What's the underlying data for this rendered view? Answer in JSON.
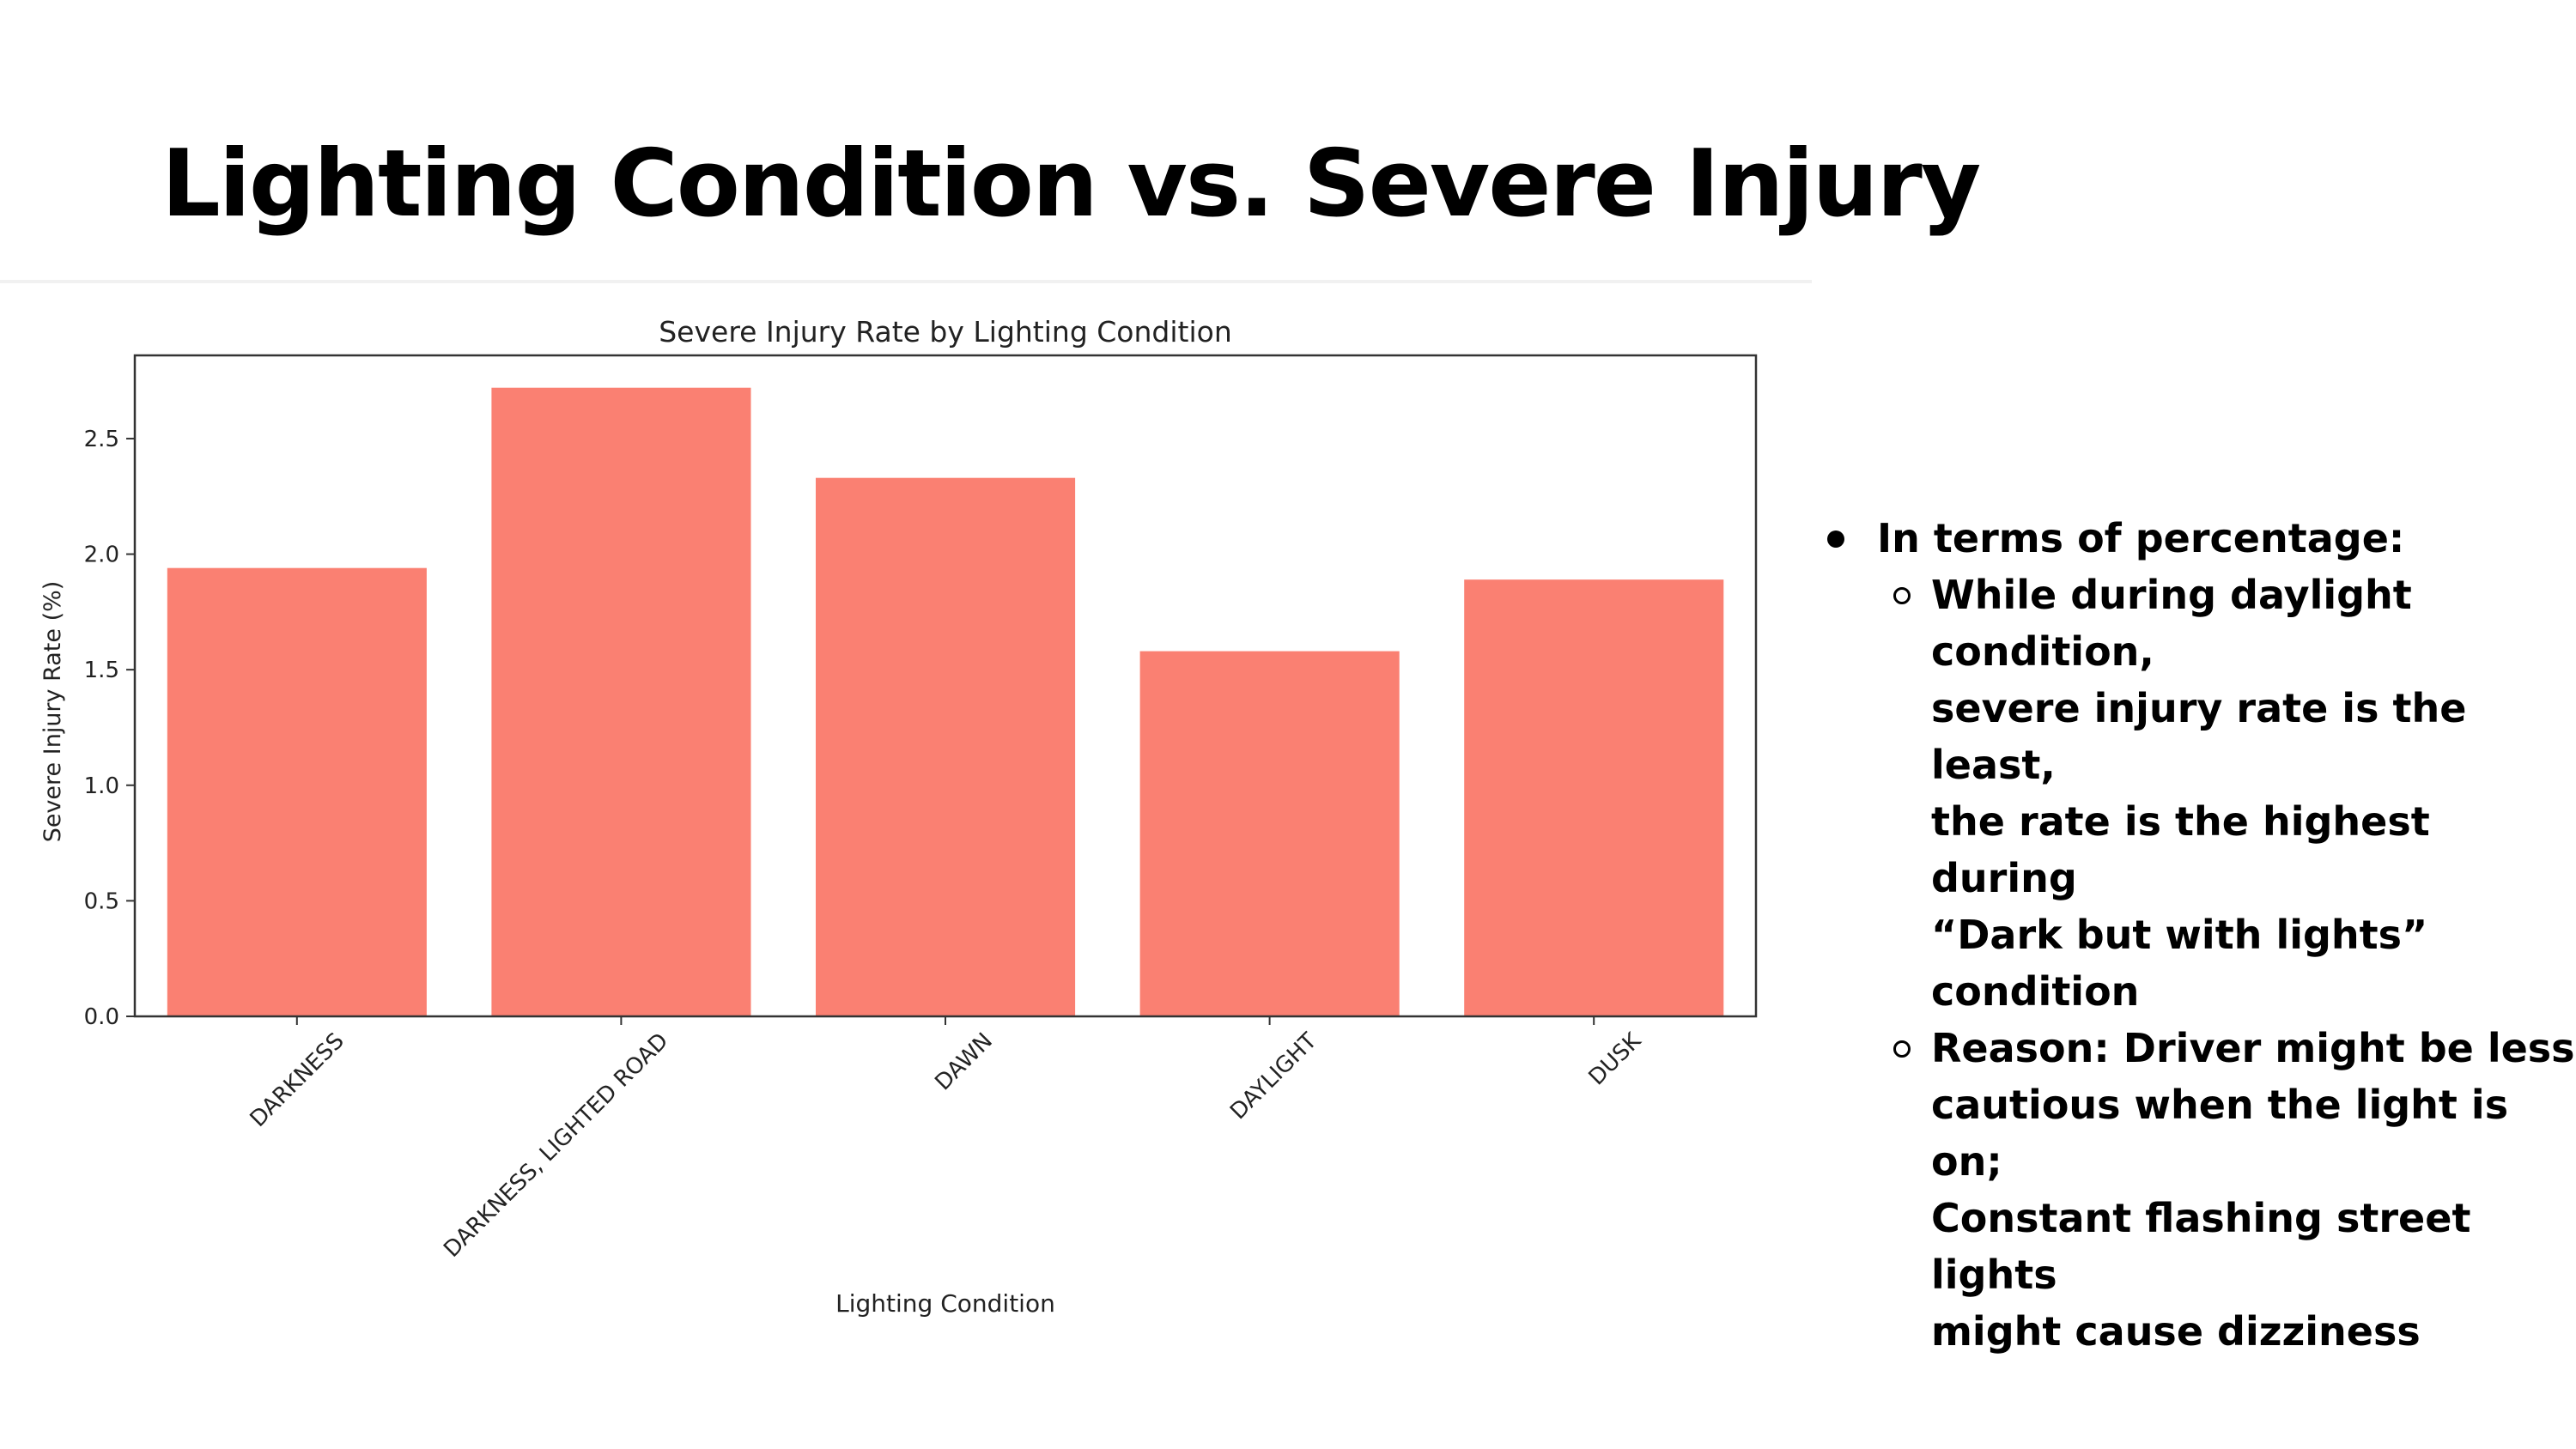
{
  "slide": {
    "title": "Lighting Condition vs.  Severe Injury",
    "bullets": [
      {
        "text": "In terms of percentage:",
        "subitems": [
          "While during daylight condition,\nsevere injury rate is the least,\nthe rate is the highest during\n“Dark but with lights” condition",
          "Reason: Driver might be less\ncautious when the light is on;\nConstant flashing street lights\nmight cause dizziness"
        ]
      }
    ]
  },
  "chart_data": {
    "type": "bar",
    "title": "Severe Injury Rate by Lighting Condition",
    "xlabel": "Lighting Condition",
    "ylabel": "Severe Injury Rate (%)",
    "categories": [
      "DARKNESS",
      "DARKNESS, LIGHTED ROAD",
      "DAWN",
      "DAYLIGHT",
      "DUSK"
    ],
    "values": [
      1.94,
      2.72,
      2.33,
      1.58,
      1.89
    ],
    "ylim": [
      0,
      2.86
    ],
    "yticks": [
      "0.0",
      "0.5",
      "1.0",
      "1.5",
      "2.0",
      "2.5"
    ],
    "bar_color": "#fa8072",
    "grid": false,
    "legend": "none"
  }
}
